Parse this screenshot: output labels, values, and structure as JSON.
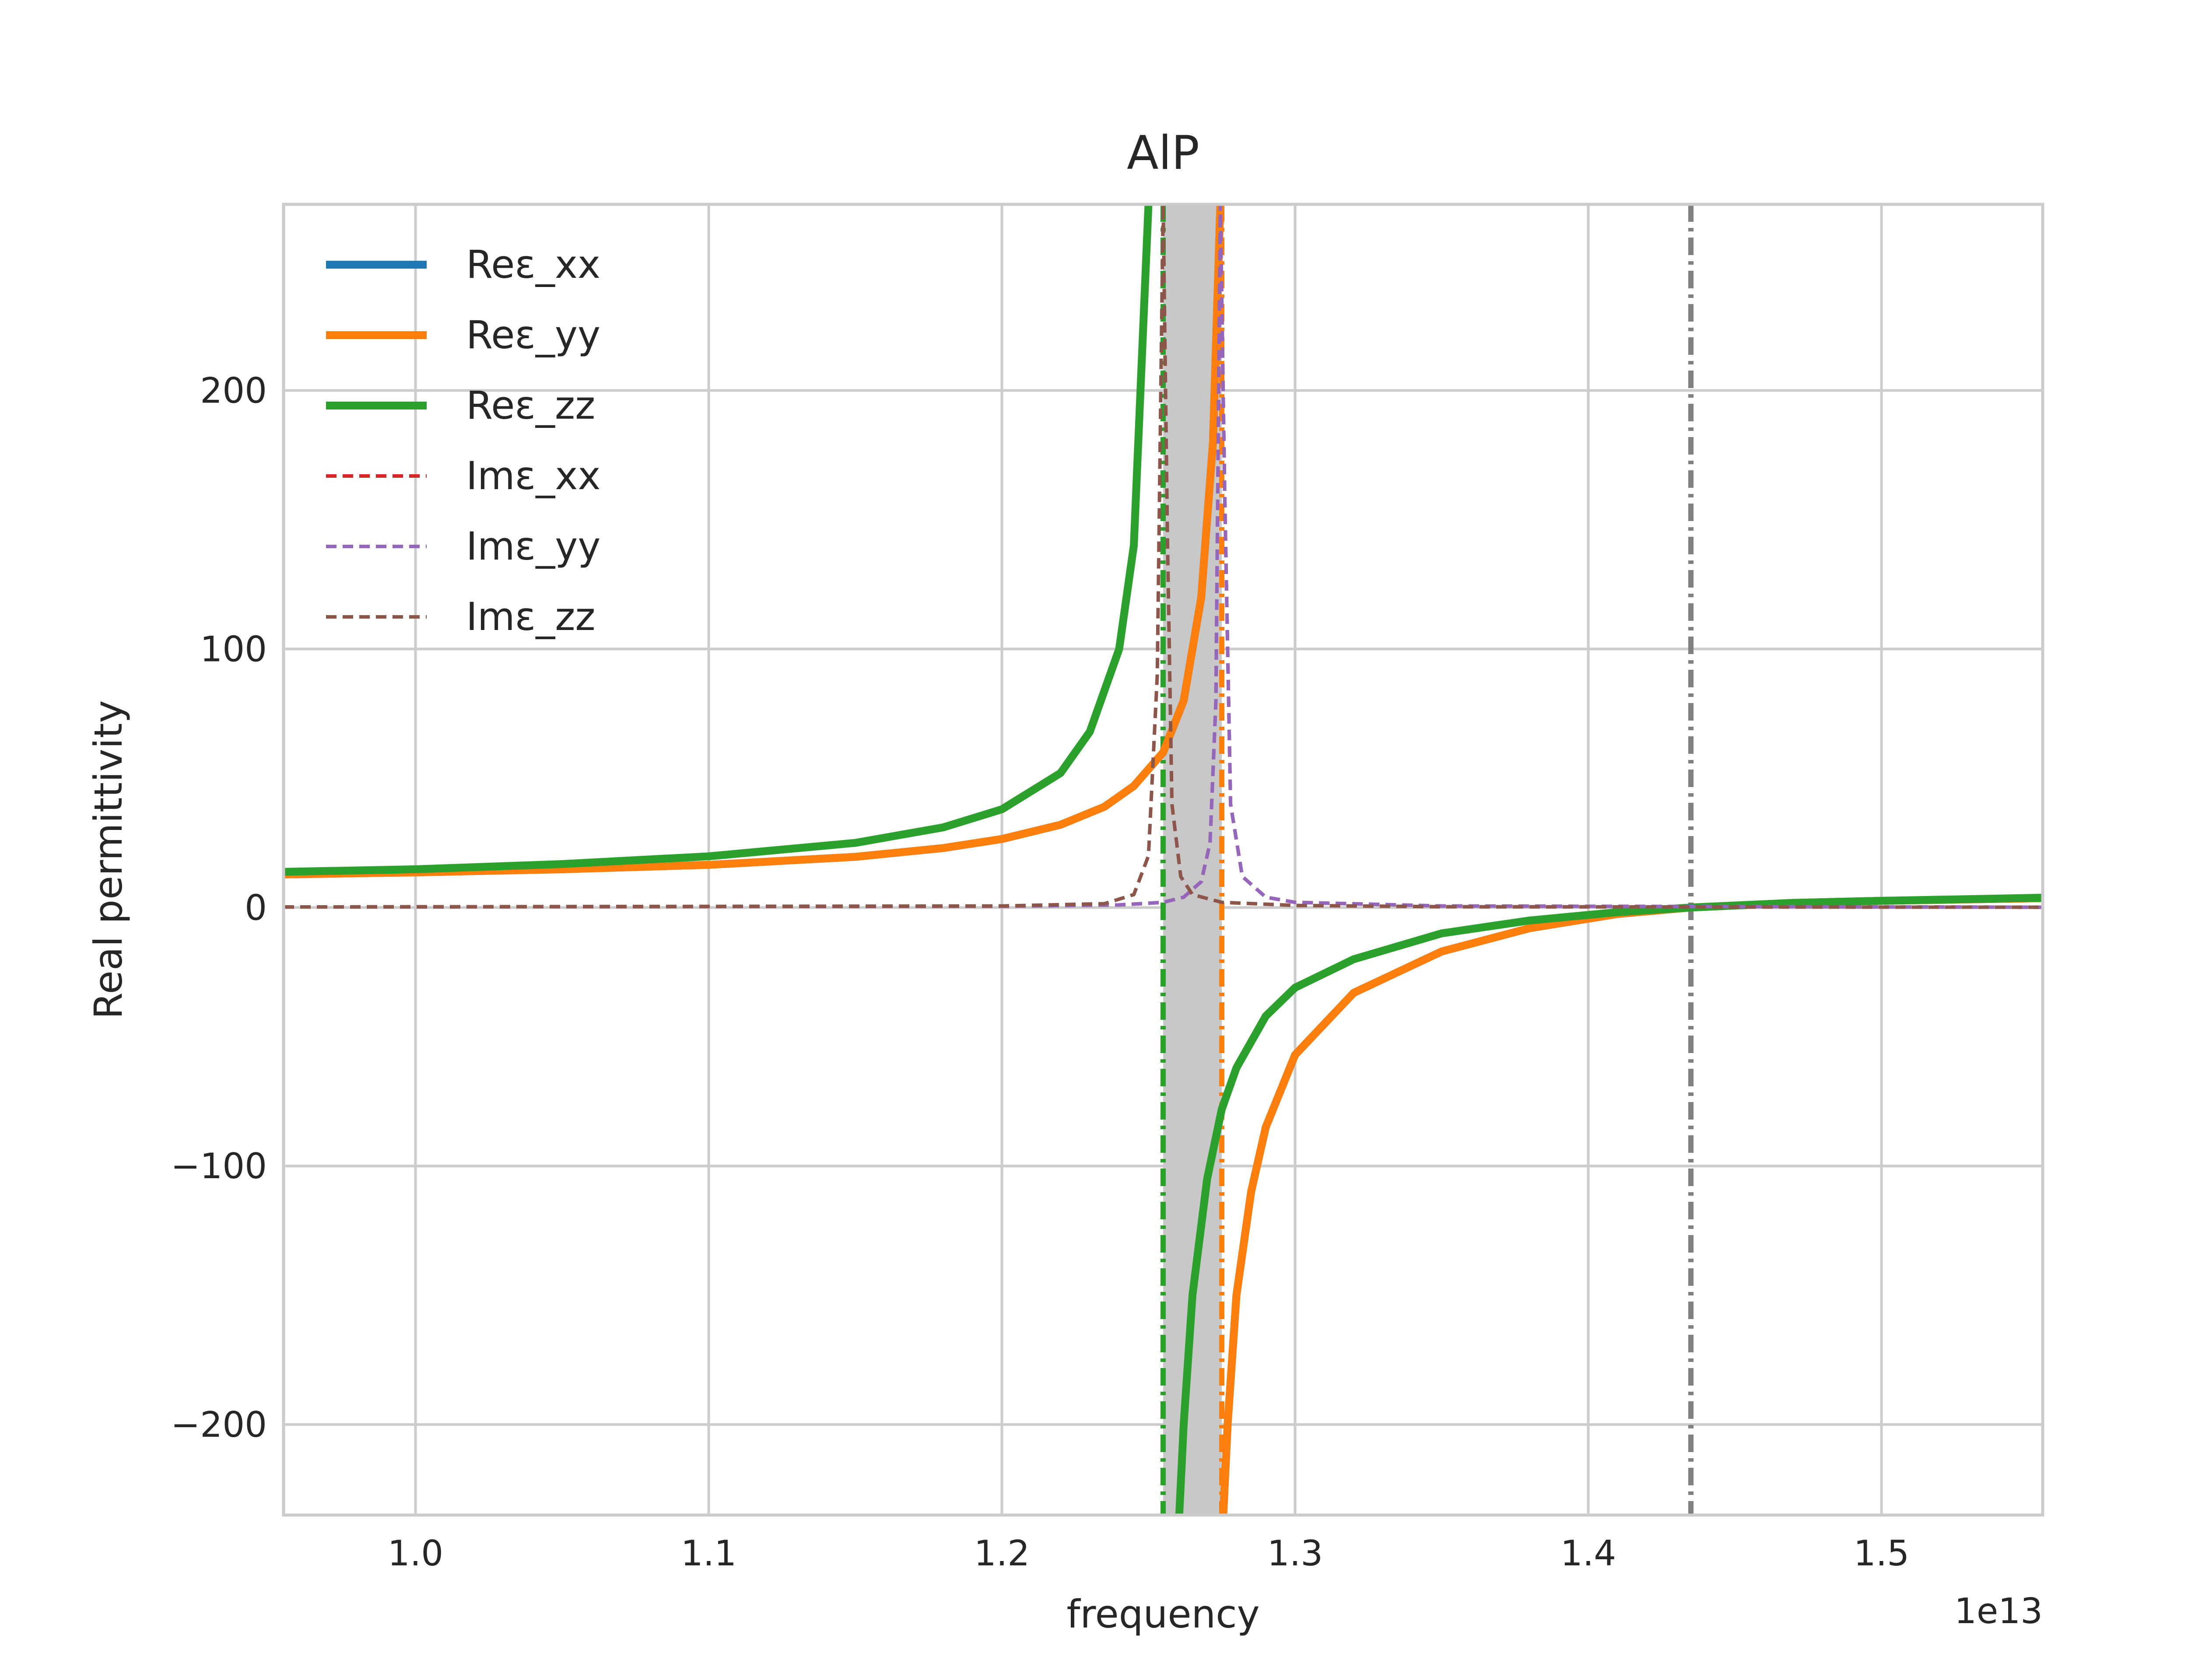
{
  "chart_data": {
    "type": "line",
    "title": "AlP",
    "xlabel": "frequency",
    "ylabel": "Real permittivity",
    "x_offset_label": "1e13",
    "x_scale": 10000000000000.0,
    "xlim": [
      0.955,
      1.555
    ],
    "ylim": [
      -235,
      272
    ],
    "xticks": [
      1.0,
      1.1,
      1.2,
      1.3,
      1.4,
      1.5
    ],
    "xtick_labels": [
      "1.0",
      "1.1",
      "1.2",
      "1.3",
      "1.4",
      "1.5"
    ],
    "yticks": [
      -200,
      -100,
      0,
      100,
      200
    ],
    "ytick_labels": [
      "−200",
      "−100",
      "0",
      "100",
      "200"
    ],
    "grid": true,
    "legend_position": "upper-left",
    "shaded_band": {
      "x": [
        1.255,
        1.275
      ],
      "color": "#c8c8c8"
    },
    "vertical_lines": [
      {
        "x": 1.255,
        "color": "#2ca02c",
        "style": "dashdot"
      },
      {
        "x": 1.275,
        "color": "#ff7f0e",
        "style": "dashdot"
      },
      {
        "x": 1.435,
        "color": "#808080",
        "style": "dashdot"
      }
    ],
    "series": [
      {
        "name": "Reε_xx",
        "color": "#1f77b4",
        "style": "solid",
        "segments": [
          {
            "x": [
              0.955,
              1.0,
              1.05,
              1.1,
              1.15,
              1.18,
              1.2,
              1.22,
              1.235,
              1.245,
              1.255,
              1.262,
              1.268,
              1.272,
              1.2745
            ],
            "y": [
              12.8,
              13.6,
              14.8,
              16.5,
              19.6,
              23.0,
              26.5,
              32.0,
              39.0,
              47.0,
              60.0,
              80.0,
              120.0,
              180.0,
              272.0
            ]
          },
          {
            "x": [
              1.2755,
              1.277,
              1.28,
              1.285,
              1.29,
              1.3,
              1.32,
              1.35,
              1.38,
              1.41,
              1.435,
              1.47,
              1.5,
              1.555
            ],
            "y": [
              -235.0,
              -200.0,
              -150.0,
              -110.0,
              -85.0,
              -57.0,
              -33.0,
              -17.0,
              -8.0,
              -2.5,
              0.0,
              1.8,
              2.6,
              3.6
            ]
          }
        ]
      },
      {
        "name": "Reε_yy",
        "color": "#ff7f0e",
        "style": "solid",
        "segments": [
          {
            "x": [
              0.955,
              1.0,
              1.05,
              1.1,
              1.15,
              1.18,
              1.2,
              1.22,
              1.235,
              1.245,
              1.255,
              1.262,
              1.268,
              1.272,
              1.2745
            ],
            "y": [
              12.8,
              13.6,
              14.8,
              16.5,
              19.6,
              23.0,
              26.5,
              32.0,
              39.0,
              47.0,
              60.0,
              80.0,
              120.0,
              180.0,
              272.0
            ]
          },
          {
            "x": [
              1.2755,
              1.277,
              1.28,
              1.285,
              1.29,
              1.3,
              1.32,
              1.35,
              1.38,
              1.41,
              1.435,
              1.47,
              1.5,
              1.555
            ],
            "y": [
              -235.0,
              -200.0,
              -150.0,
              -110.0,
              -85.0,
              -57.0,
              -33.0,
              -17.0,
              -8.0,
              -2.5,
              0.0,
              1.8,
              2.6,
              3.6
            ]
          }
        ]
      },
      {
        "name": "Reε_zz",
        "color": "#2ca02c",
        "style": "solid",
        "segments": [
          {
            "x": [
              0.955,
              1.0,
              1.05,
              1.1,
              1.15,
              1.18,
              1.2,
              1.22,
              1.23,
              1.24,
              1.245,
              1.25
            ],
            "y": [
              13.8,
              14.8,
              16.8,
              19.8,
              25.0,
              31.0,
              38.0,
              52.0,
              68.0,
              100.0,
              140.0,
              272.0
            ]
          },
          {
            "x": [
              1.2605,
              1.262,
              1.265,
              1.27,
              1.275,
              1.28,
              1.29,
              1.3,
              1.32,
              1.35,
              1.38,
              1.41,
              1.435,
              1.47,
              1.5,
              1.555
            ],
            "y": [
              -235.0,
              -200.0,
              -150.0,
              -105.0,
              -78.0,
              -62.0,
              -42.0,
              -31.0,
              -20.0,
              -10.0,
              -5.0,
              -1.8,
              0.0,
              1.8,
              2.6,
              3.8
            ]
          }
        ]
      },
      {
        "name": "Imε_xx",
        "color": "#d62728",
        "style": "dashed",
        "segments": [
          {
            "x": [
              0.955,
              1.2,
              1.24,
              1.255,
              1.262,
              1.268,
              1.271,
              1.273,
              1.2745,
              1.276,
              1.278,
              1.282,
              1.29,
              1.3,
              1.35,
              1.555
            ],
            "y": [
              0.2,
              0.5,
              1.0,
              2.0,
              4.0,
              10.0,
              25.0,
              80.0,
              272.0,
              160.0,
              40.0,
              12.0,
              4.0,
              2.0,
              0.6,
              0.1
            ]
          }
        ]
      },
      {
        "name": "Imε_yy",
        "color": "#9467bd",
        "style": "dashed",
        "segments": [
          {
            "x": [
              0.955,
              1.2,
              1.24,
              1.255,
              1.262,
              1.268,
              1.271,
              1.273,
              1.2745,
              1.276,
              1.278,
              1.282,
              1.29,
              1.3,
              1.35,
              1.555
            ],
            "y": [
              0.2,
              0.5,
              1.0,
              2.0,
              4.0,
              10.0,
              25.0,
              80.0,
              272.0,
              160.0,
              40.0,
              12.0,
              4.0,
              2.0,
              0.6,
              0.1
            ]
          }
        ]
      },
      {
        "name": "Imε_zz",
        "color": "#8c564b",
        "style": "dashed",
        "segments": [
          {
            "x": [
              0.955,
              1.2,
              1.235,
              1.245,
              1.25,
              1.253,
              1.255,
              1.2565,
              1.258,
              1.261,
              1.265,
              1.275,
              1.3,
              1.35,
              1.555
            ],
            "y": [
              0.2,
              0.6,
              1.5,
              5.0,
              20.0,
              90.0,
              272.0,
              140.0,
              40.0,
              12.0,
              5.0,
              2.0,
              0.8,
              0.3,
              0.1
            ]
          }
        ]
      }
    ]
  }
}
